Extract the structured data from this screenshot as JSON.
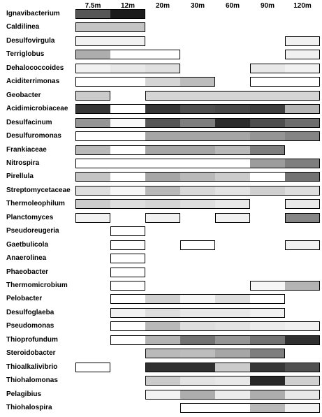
{
  "columns": [
    "7.5m",
    "12m",
    "20m",
    "30m",
    "60m",
    "90m",
    "120m"
  ],
  "rows": [
    {
      "name": "Ignavibacterium",
      "cells": [
        0.72,
        0.97,
        null,
        null,
        null,
        null,
        null
      ]
    },
    {
      "name": "Caldilinea",
      "cells": [
        0.25,
        0.25,
        null,
        null,
        null,
        null,
        null
      ]
    },
    {
      "name": "Desulfovirgula",
      "cells": [
        0.06,
        0.06,
        null,
        null,
        null,
        null,
        0.06
      ]
    },
    {
      "name": "Terriglobus",
      "cells": [
        0.35,
        0.0,
        0.0,
        null,
        null,
        null,
        0.06
      ]
    },
    {
      "name": "Dehalococcoides",
      "cells": [
        0.06,
        0.1,
        0.13,
        null,
        null,
        0.1,
        0.06
      ]
    },
    {
      "name": "Aciditerrimonas",
      "cells": [
        0.0,
        0.0,
        0.18,
        0.28,
        null,
        0.0,
        0.0
      ]
    },
    {
      "name": "Geobacter",
      "cells": [
        0.22,
        null,
        0.18,
        0.18,
        0.18,
        0.18,
        0.18
      ]
    },
    {
      "name": "Acidimicrobiaceae",
      "cells": [
        0.85,
        0.0,
        0.85,
        0.75,
        0.78,
        0.82,
        0.32
      ]
    },
    {
      "name": "Desulfacinum",
      "cells": [
        0.45,
        0.03,
        0.72,
        0.55,
        0.9,
        0.75,
        0.62
      ]
    },
    {
      "name": "Desulfuromonas",
      "cells": [
        0.0,
        0.0,
        0.38,
        0.38,
        0.38,
        0.45,
        0.52
      ]
    },
    {
      "name": "Frankiaceae",
      "cells": [
        0.3,
        0.0,
        0.38,
        0.38,
        0.3,
        0.55,
        null
      ]
    },
    {
      "name": "Nitrospira",
      "cells": [
        0.0,
        0.0,
        0.0,
        0.0,
        0.0,
        0.42,
        0.55
      ]
    },
    {
      "name": "Pirellula",
      "cells": [
        0.25,
        0.0,
        0.38,
        0.3,
        0.22,
        0.0,
        0.6
      ]
    },
    {
      "name": "Streptomycetaceae",
      "cells": [
        0.14,
        0.04,
        0.3,
        0.16,
        0.12,
        0.2,
        0.14
      ]
    },
    {
      "name": "Thermoleophilum",
      "cells": [
        0.22,
        0.14,
        0.18,
        0.14,
        0.1,
        null,
        0.1
      ]
    },
    {
      "name": "Planctomyces",
      "cells": [
        0.06,
        null,
        0.06,
        null,
        0.06,
        null,
        0.52
      ]
    },
    {
      "name": "Pseudoreugeria",
      "cells": [
        null,
        0.0,
        null,
        null,
        null,
        null,
        null
      ]
    },
    {
      "name": "Gaetbulicola",
      "cells": [
        null,
        0.0,
        null,
        0.0,
        null,
        null,
        0.06
      ]
    },
    {
      "name": "Anaerolinea",
      "cells": [
        null,
        0.0,
        null,
        null,
        null,
        null,
        null
      ]
    },
    {
      "name": "Phaeobacter",
      "cells": [
        null,
        0.0,
        null,
        null,
        null,
        null,
        null
      ]
    },
    {
      "name": "Thermomicrobium",
      "cells": [
        null,
        0.0,
        null,
        null,
        null,
        0.04,
        0.32
      ]
    },
    {
      "name": "Pelobacter",
      "cells": [
        null,
        0.0,
        0.2,
        0.04,
        0.14,
        0.0,
        null
      ]
    },
    {
      "name": "Desulfoglaeba",
      "cells": [
        null,
        0.06,
        0.14,
        0.1,
        0.1,
        0.06,
        null
      ]
    },
    {
      "name": "Pseudomonas",
      "cells": [
        null,
        0.0,
        0.3,
        0.14,
        0.12,
        0.08,
        0.06
      ]
    },
    {
      "name": "Thioprofundum",
      "cells": [
        null,
        0.0,
        0.32,
        0.6,
        0.45,
        0.6,
        0.88
      ]
    },
    {
      "name": "Steroidobacter",
      "cells": [
        null,
        null,
        0.3,
        0.28,
        0.38,
        0.55,
        null
      ]
    },
    {
      "name": "Thioalkalivibrio",
      "cells": [
        0.0,
        null,
        0.88,
        0.88,
        0.22,
        0.85,
        0.75
      ]
    },
    {
      "name": "Thiohalomonas",
      "cells": [
        null,
        null,
        0.22,
        0.12,
        0.1,
        0.92,
        0.2
      ]
    },
    {
      "name": "Pelagibius",
      "cells": [
        null,
        null,
        0.05,
        0.35,
        0.08,
        0.35,
        0.1
      ]
    },
    {
      "name": "Thiohalospira",
      "cells": [
        null,
        null,
        null,
        0.0,
        0.0,
        0.3,
        0.06
      ]
    }
  ]
}
